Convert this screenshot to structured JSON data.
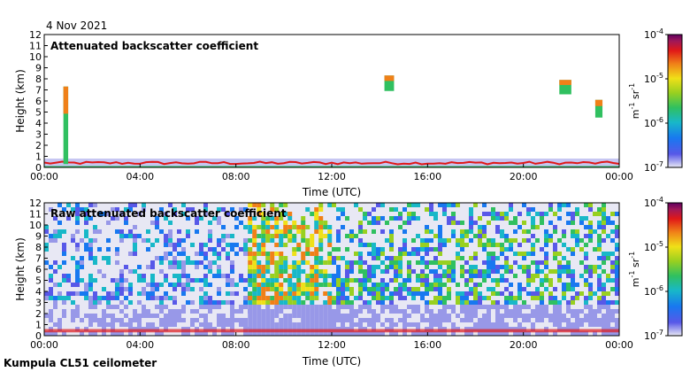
{
  "page": {
    "date": "4 Nov 2021",
    "instrument": "Kumpula CL51 ceilometer"
  },
  "colorbar": {
    "unit_base": "m",
    "unit_base_exp": "-1",
    "unit_sr": " sr",
    "unit_sr_exp": "-1",
    "ticks": [
      {
        "base": "10",
        "exp": "-4",
        "value": 0.0001
      },
      {
        "base": "10",
        "exp": "-5",
        "value": 1e-05
      },
      {
        "base": "10",
        "exp": "-6",
        "value": 1e-06
      },
      {
        "base": "10",
        "exp": "-7",
        "value": 1e-07
      }
    ],
    "colors": [
      "#e8e8f4",
      "#5858e8",
      "#1878f0",
      "#18b8c8",
      "#30c060",
      "#98d020",
      "#f0e018",
      "#f08018",
      "#e01818",
      "#a01858",
      "#600060"
    ]
  },
  "chart_data": [
    {
      "type": "heatmap",
      "title": "Attenuated backscatter coefficient",
      "xlabel": "Time (UTC)",
      "ylabel": "Height (km)",
      "xlim": [
        0,
        24
      ],
      "ylim": [
        0,
        12
      ],
      "x_ticks": [
        "00:00",
        "04:00",
        "08:00",
        "12:00",
        "16:00",
        "20:00",
        "00:00"
      ],
      "y_ticks": [
        "0",
        "1",
        "2",
        "3",
        "4",
        "5",
        "6",
        "7",
        "8",
        "9",
        "10",
        "11",
        "12"
      ],
      "features": [
        {
          "kind": "boundary_layer",
          "t_start": 0,
          "t_end": 24,
          "top_km": 0.5
        },
        {
          "kind": "cloud",
          "t_start": 0.8,
          "t_end": 1.0,
          "bottom_km": 0.3,
          "top_km": 7.3
        },
        {
          "kind": "cloud",
          "t_start": 14.2,
          "t_end": 14.6,
          "bottom_km": 6.9,
          "top_km": 8.3
        },
        {
          "kind": "cloud",
          "t_start": 21.5,
          "t_end": 22.0,
          "bottom_km": 6.6,
          "top_km": 7.9
        },
        {
          "kind": "cloud",
          "t_start": 23.0,
          "t_end": 23.3,
          "bottom_km": 4.5,
          "top_km": 6.1
        }
      ]
    },
    {
      "type": "heatmap",
      "title": "Raw attenuated backscatter coefficient",
      "xlabel": "Time (UTC)",
      "ylabel": "Height (km)",
      "xlim": [
        0,
        24
      ],
      "ylim": [
        0,
        12
      ],
      "x_ticks": [
        "00:00",
        "04:00",
        "08:00",
        "12:00",
        "16:00",
        "20:00",
        "00:00"
      ],
      "y_ticks": [
        "0",
        "1",
        "2",
        "3",
        "4",
        "5",
        "6",
        "7",
        "8",
        "9",
        "10",
        "11",
        "12"
      ],
      "features": [
        {
          "kind": "noise_regime",
          "t_start": 0,
          "t_end": 8.5,
          "level": "low"
        },
        {
          "kind": "noise_regime",
          "t_start": 8.5,
          "t_end": 12,
          "level": "high"
        },
        {
          "kind": "noise_regime",
          "t_start": 12,
          "t_end": 24,
          "level": "medium"
        }
      ]
    }
  ]
}
